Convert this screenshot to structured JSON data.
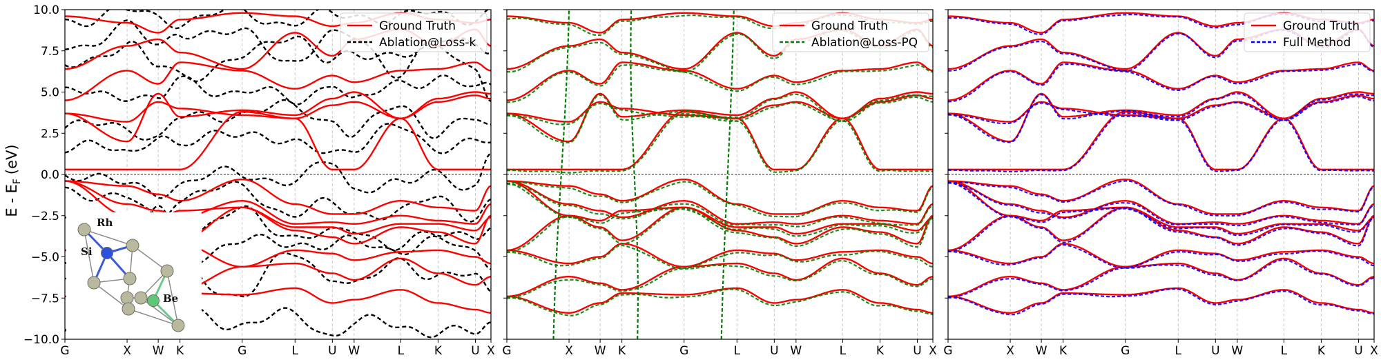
{
  "figure": {
    "ylabel": "E - E",
    "ylabel_subscript": "F",
    "ylabel_unit": "(eV)"
  },
  "chart_data": [
    {
      "type": "line",
      "panel": "Ablation@Loss-k",
      "ylim": [
        -10,
        10
      ],
      "yticks": [
        -10.0,
        -7.5,
        -5.0,
        -2.5,
        0.0,
        2.5,
        5.0,
        7.5,
        10.0
      ],
      "ytick_labels": [
        "−10.0",
        "−7.5",
        "−5.0",
        "−2.5",
        "0.0",
        "2.5",
        "5.0",
        "7.5",
        "10.0"
      ],
      "xticks": [
        "G",
        "X",
        "W",
        "K",
        "G",
        "L",
        "U",
        "W",
        "L",
        "K",
        "U",
        "X"
      ],
      "xtick_positions": [
        0.0,
        1.0,
        1.5,
        1.85,
        2.85,
        3.7,
        4.3,
        4.65,
        5.4,
        6.0,
        6.6,
        6.85
      ],
      "grid": "vertical dashed lines at high-symmetry points",
      "fermi_line": 0.0,
      "legend": {
        "position": "top-right",
        "entries": [
          "Ground Truth",
          "Ablation@Loss-k"
        ]
      },
      "series": [
        {
          "name": "Ground Truth",
          "color": "#ff0000",
          "style": "solid"
        },
        {
          "name": "Ablation@Loss-k",
          "color": "#000000",
          "style": "dashed"
        }
      ],
      "inset": {
        "description": "crystal structure",
        "atoms": [
          "Rh",
          "Si",
          "Be"
        ],
        "colors": {
          "Rh": "#b9b9a0",
          "Si": "#2d4fe0",
          "Be": "#5fc878"
        }
      }
    },
    {
      "type": "line",
      "panel": "Ablation@Loss-PQ",
      "ylim": [
        -10,
        10
      ],
      "xticks": [
        "G",
        "X",
        "W",
        "K",
        "G",
        "L",
        "U",
        "W",
        "L",
        "K",
        "U",
        "X"
      ],
      "xtick_positions": [
        0.0,
        1.0,
        1.5,
        1.85,
        2.85,
        3.7,
        4.3,
        4.65,
        5.4,
        6.0,
        6.6,
        6.85
      ],
      "grid": "vertical dashed lines at high-symmetry points",
      "fermi_line": 0.0,
      "legend": {
        "position": "top-right",
        "entries": [
          "Ground Truth",
          "Ablation@Loss-PQ"
        ]
      },
      "series": [
        {
          "name": "Ground Truth",
          "color": "#ff0000",
          "style": "solid"
        },
        {
          "name": "Ablation@Loss-PQ",
          "color": "#008000",
          "style": "dashed"
        }
      ]
    },
    {
      "type": "line",
      "panel": "Full Method",
      "ylim": [
        -10,
        10
      ],
      "xticks": [
        "G",
        "X",
        "W",
        "K",
        "G",
        "L",
        "U",
        "W",
        "L",
        "K",
        "U",
        "X"
      ],
      "xtick_positions": [
        0.0,
        1.0,
        1.5,
        1.85,
        2.85,
        3.7,
        4.3,
        4.65,
        5.4,
        6.0,
        6.6,
        6.85
      ],
      "grid": "vertical dashed lines at high-symmetry points",
      "fermi_line": 0.0,
      "legend": {
        "position": "top-right",
        "entries": [
          "Ground Truth",
          "Full Method"
        ]
      },
      "series": [
        {
          "name": "Ground Truth",
          "color": "#ff0000",
          "style": "solid"
        },
        {
          "name": "Full Method",
          "color": "#0000ff",
          "style": "dashed"
        }
      ]
    }
  ]
}
